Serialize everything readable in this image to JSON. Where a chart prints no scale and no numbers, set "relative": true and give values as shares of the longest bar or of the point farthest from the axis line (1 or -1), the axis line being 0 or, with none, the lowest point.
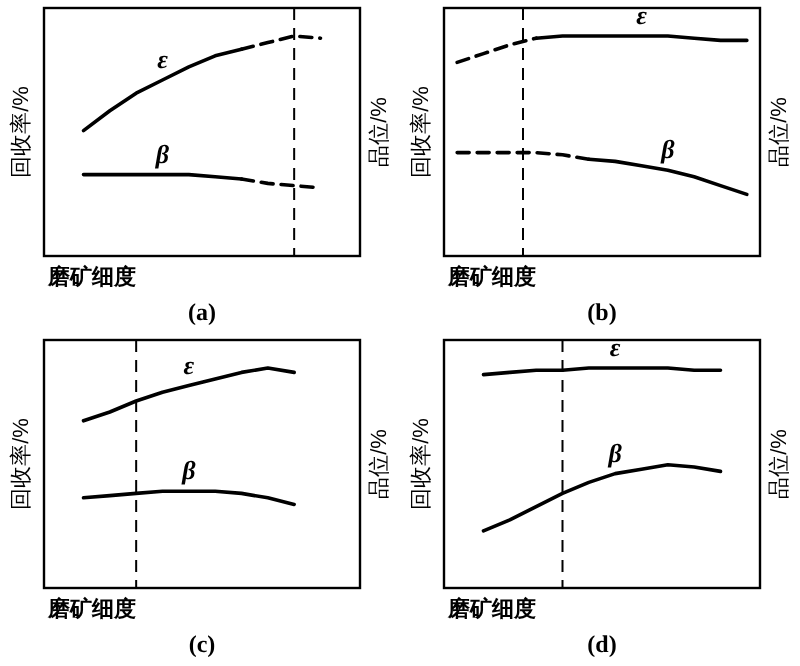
{
  "chart_data": [
    {
      "type": "line",
      "title": "(a)",
      "xlabel": "磨矿细度",
      "ylabel": "回收率/%",
      "y2label": "品位/%",
      "relative": true,
      "categories": [
        null,
        null,
        null,
        null,
        null,
        null,
        null,
        null,
        null,
        null,
        null,
        null
      ],
      "series": [
        {
          "name": "ε",
          "color": "#000000",
          "line_style": "solid",
          "values": [
            null,
            0.57,
            0.66,
            0.74,
            0.8,
            0.86,
            0.91,
            0.94,
            null,
            null,
            null,
            null
          ]
        },
        {
          "color": "#000000",
          "line_style": "dashed",
          "values": [
            null,
            null,
            null,
            null,
            null,
            null,
            null,
            0.94,
            0.97,
            1.0,
            0.99,
            null
          ]
        },
        {
          "name": "β",
          "color": "#000000",
          "line_style": "solid",
          "values": [
            null,
            0.37,
            0.37,
            0.37,
            0.37,
            0.37,
            0.36,
            0.35,
            null,
            null,
            null,
            null
          ]
        },
        {
          "color": "#000000",
          "line_style": "dashed",
          "values": [
            null,
            null,
            null,
            null,
            null,
            null,
            null,
            0.35,
            0.33,
            0.32,
            0.31,
            null
          ]
        }
      ]
    },
    {
      "type": "line",
      "title": "(b)",
      "xlabel": "磨矿细度",
      "ylabel": "回收率/%",
      "y2label": "品位/%",
      "relative": true,
      "categories": [
        null,
        null,
        null,
        null,
        null,
        null,
        null,
        null,
        null,
        null,
        null,
        null
      ],
      "series": [
        {
          "color": "#000000",
          "line_style": "dashed",
          "values": [
            0.88,
            0.92,
            0.96,
            0.99,
            null,
            null,
            null,
            null,
            null,
            null,
            null,
            null
          ]
        },
        {
          "name": "ε",
          "color": "#000000",
          "line_style": "solid",
          "values": [
            null,
            null,
            null,
            0.99,
            1.0,
            1.0,
            1.0,
            1.0,
            1.0,
            0.99,
            0.98,
            0.98
          ]
        },
        {
          "color": "#000000",
          "line_style": "dashed",
          "values": [
            0.47,
            0.47,
            0.47,
            0.47,
            0.46,
            0.44,
            null,
            null,
            null,
            null,
            null,
            null
          ]
        },
        {
          "name": "β",
          "color": "#000000",
          "line_style": "solid",
          "values": [
            null,
            null,
            null,
            null,
            null,
            0.44,
            0.43,
            0.41,
            0.39,
            0.36,
            0.32,
            0.28
          ]
        }
      ]
    },
    {
      "type": "line",
      "title": "(c)",
      "xlabel": "磨矿细度",
      "ylabel": "回收率/%",
      "y2label": "品位/%",
      "relative": true,
      "categories": [
        null,
        null,
        null,
        null,
        null,
        null,
        null,
        null,
        null,
        null,
        null,
        null
      ],
      "series": [
        {
          "name": "ε",
          "color": "#000000",
          "line_style": "solid",
          "values": [
            null,
            0.76,
            0.8,
            0.85,
            0.89,
            0.92,
            0.95,
            0.98,
            1.0,
            0.98,
            null,
            null
          ]
        },
        {
          "name": "β",
          "color": "#000000",
          "line_style": "solid",
          "values": [
            null,
            0.41,
            0.42,
            0.43,
            0.44,
            0.44,
            0.44,
            0.43,
            0.41,
            0.38,
            null,
            null
          ]
        }
      ]
    },
    {
      "type": "line",
      "title": "(d)",
      "xlabel": "磨矿细度",
      "ylabel": "回收率/%",
      "y2label": "品位/%",
      "relative": true,
      "categories": [
        null,
        null,
        null,
        null,
        null,
        null,
        null,
        null,
        null,
        null,
        null,
        null
      ],
      "series": [
        {
          "name": "ε",
          "color": "#000000",
          "line_style": "solid",
          "values": [
            null,
            0.97,
            0.98,
            0.99,
            0.99,
            1.0,
            1.0,
            1.0,
            1.0,
            0.99,
            0.99,
            null
          ]
        },
        {
          "name": "β",
          "color": "#000000",
          "line_style": "solid",
          "values": [
            null,
            0.26,
            0.31,
            0.37,
            0.43,
            0.48,
            0.52,
            0.54,
            0.56,
            0.55,
            0.53,
            null
          ]
        }
      ]
    }
  ]
}
